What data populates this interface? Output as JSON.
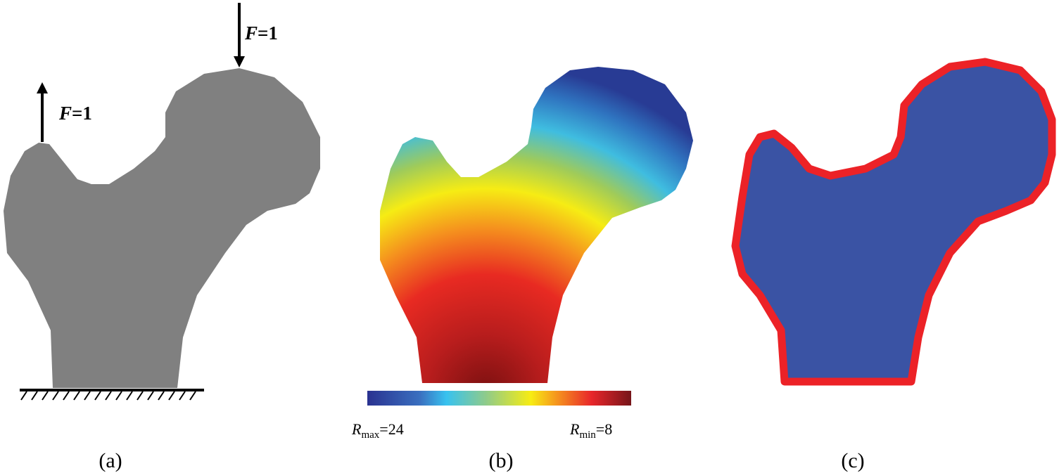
{
  "panels": [
    {
      "label": "(a)",
      "forces": [
        {
          "symbol": "F",
          "value_text": "=1"
        },
        {
          "symbol": "F",
          "value_text": "=1"
        }
      ]
    },
    {
      "label": "(b)",
      "colorbar": {
        "left": {
          "symbol": "R",
          "subscript": "max",
          "value_text": "=24"
        },
        "right": {
          "symbol": "R",
          "subscript": "min",
          "value_text": "=8"
        }
      }
    },
    {
      "label": "(c)"
    }
  ]
}
